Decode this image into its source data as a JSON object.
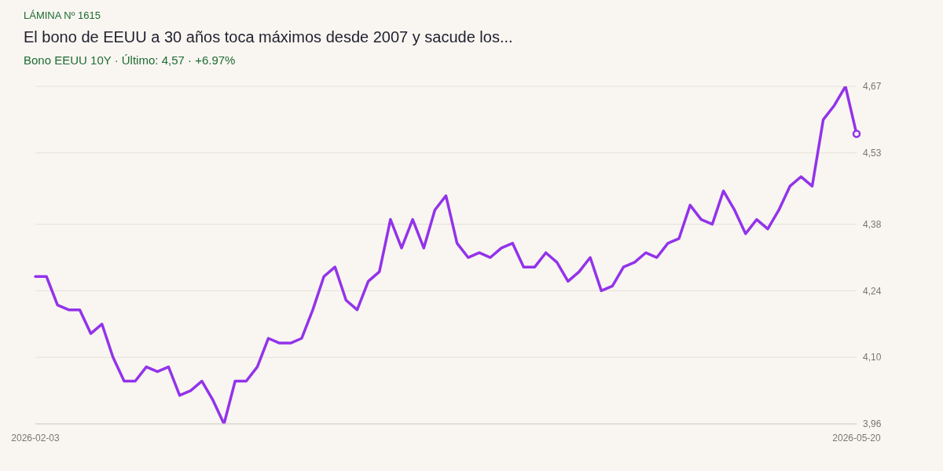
{
  "chart_data": {
    "type": "line",
    "title": "El bono de EEUU a 30 años toca máximos desde 2007 y sacude los...",
    "subtitle": "Bono EEUU 10Y · Último: 4,57 · +6.97%",
    "annotations": [
      "LÁMINA Nº 1615"
    ],
    "categories": [
      "2026-02-03",
      null,
      null,
      null,
      null,
      null,
      null,
      null,
      null,
      null,
      null,
      null,
      null,
      null,
      null,
      null,
      null,
      null,
      null,
      null,
      null,
      null,
      null,
      null,
      null,
      null,
      null,
      null,
      null,
      null,
      null,
      null,
      null,
      null,
      null,
      null,
      null,
      null,
      null,
      null,
      null,
      null,
      null,
      null,
      null,
      null,
      null,
      null,
      null,
      null,
      null,
      null,
      null,
      null,
      null,
      null,
      null,
      null,
      null,
      null,
      null,
      null,
      null,
      null,
      null,
      null,
      null,
      null,
      null,
      null,
      null,
      null,
      null,
      null,
      "2026-05-20"
    ],
    "series": [
      {
        "color": "#9333ea",
        "values": [
          4.27,
          4.27,
          4.21,
          4.2,
          4.2,
          4.15,
          4.17,
          4.1,
          4.05,
          4.05,
          4.08,
          4.07,
          4.08,
          4.02,
          4.03,
          4.05,
          4.01,
          3.96,
          4.05,
          4.05,
          4.08,
          4.14,
          4.13,
          4.13,
          4.14,
          4.2,
          4.27,
          4.29,
          4.22,
          4.2,
          4.26,
          4.28,
          4.39,
          4.33,
          4.39,
          4.33,
          4.41,
          4.44,
          4.34,
          4.31,
          4.32,
          4.31,
          4.33,
          4.34,
          4.29,
          4.29,
          4.32,
          4.3,
          4.26,
          4.28,
          4.31,
          4.24,
          4.25,
          4.29,
          4.3,
          4.32,
          4.31,
          4.34,
          4.35,
          4.42,
          4.39,
          4.38,
          4.45,
          4.41,
          4.36,
          4.39,
          4.37,
          4.41,
          4.46,
          4.48,
          4.46,
          4.6,
          4.63,
          4.67,
          4.57
        ]
      }
    ],
    "ylim": [
      3.96,
      4.67
    ],
    "yticks": [
      {
        "value": 3.96,
        "label": "3,96"
      },
      {
        "value": 4.1,
        "label": "4,10"
      },
      {
        "value": 4.24,
        "label": "4,24"
      },
      {
        "value": 4.38,
        "label": "4,38"
      },
      {
        "value": 4.53,
        "label": "4,53"
      },
      {
        "value": 4.67,
        "label": "4,67"
      }
    ],
    "grid": "y",
    "legend": false,
    "line_style": "solid"
  }
}
